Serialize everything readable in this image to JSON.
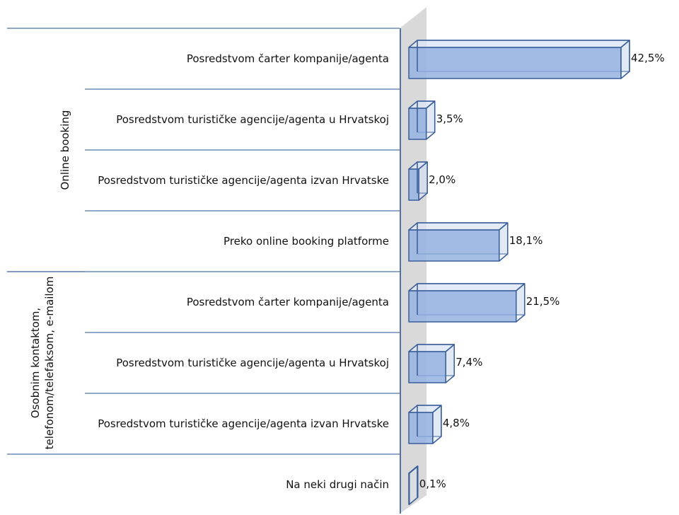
{
  "chart_data": {
    "type": "bar3d_horizontal",
    "categories": [
      "Posredstvom čarter kompanije/agenta",
      "Posredstvom turističke agencije/agenta u Hrvatskoj",
      "Posredstvom turističke agencije/agenta izvan Hrvatske",
      "Preko online booking platforme",
      "Posredstvom čarter kompanije/agenta",
      "Posredstvom turističke agencije/agenta u Hrvatskoj",
      "Posredstvom turističke agencije/agenta izvan Hrvatske",
      "Na neki drugi način"
    ],
    "values": [
      42.5,
      3.5,
      2.0,
      18.1,
      21.5,
      7.4,
      4.8,
      0.1
    ],
    "value_labels": [
      "42,5%",
      "3,5%",
      "2,0%",
      "18,1%",
      "21,5%",
      "7,4%",
      "4,8%",
      "0,1%"
    ],
    "groups": [
      {
        "name": "Online booking",
        "size": 4
      },
      {
        "name": "Osobnim kontaktom, telefonom/telefaksom, e-mailom",
        "size": 3
      }
    ],
    "color": "#95b3e0"
  }
}
